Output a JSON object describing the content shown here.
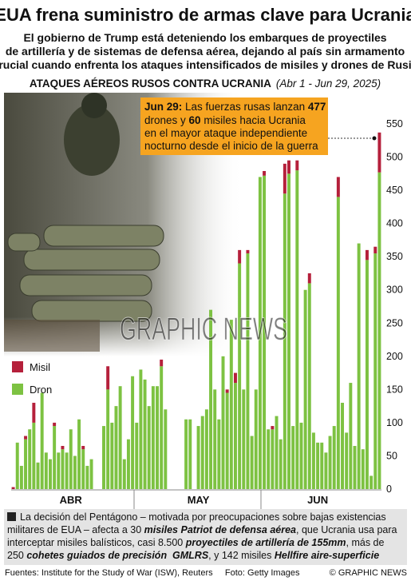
{
  "header": {
    "title": "EUA frena suministro de armas clave para Ucrania",
    "subtitle_lines": [
      "El gobierno de Trump está deteniendo los embarques de proyectiles",
      "de artillería y de sistemas de defensa aérea, dejando al país sin armamento",
      "crucial cuando enfrenta los ataques intensificados de misiles y drones de Rusia"
    ]
  },
  "chart_data": {
    "type": "stacked-bar",
    "title": "ATAQUES AÉREOS RUSOS CONTRA UCRANIA",
    "subtitle": "(Abr 1 - Jun 29, 2025)",
    "categories": [
      null,
      null,
      null,
      null,
      null,
      null,
      null,
      null,
      null,
      null,
      null,
      null,
      null,
      null,
      "ABR",
      null,
      null,
      null,
      null,
      null,
      null,
      null,
      null,
      null,
      null,
      null,
      null,
      null,
      null,
      null,
      null,
      null,
      null,
      null,
      null,
      null,
      null,
      null,
      null,
      null,
      null,
      null,
      null,
      null,
      null,
      "MAY",
      null,
      null,
      null,
      null,
      null,
      null,
      null,
      null,
      null,
      null,
      null,
      null,
      null,
      null,
      null,
      null,
      null,
      null,
      null,
      null,
      null,
      null,
      null,
      null,
      null,
      null,
      null,
      null,
      "JUN",
      null,
      null,
      null,
      null,
      null,
      null,
      null,
      null,
      null,
      null,
      null,
      null,
      null,
      null,
      null
    ],
    "series": [
      {
        "name": "Dron",
        "color": "#7dc242",
        "values": [
          0,
          70,
          35,
          75,
          90,
          100,
          40,
          145,
          55,
          45,
          95,
          55,
          60,
          55,
          90,
          50,
          105,
          60,
          35,
          45,
          0,
          0,
          95,
          150,
          100,
          125,
          155,
          45,
          75,
          170,
          100,
          180,
          165,
          125,
          155,
          155,
          185,
          120,
          0,
          0,
          0,
          0,
          105,
          105,
          0,
          95,
          110,
          120,
          270,
          150,
          105,
          200,
          145,
          255,
          160,
          340,
          150,
          355,
          80,
          150,
          470,
          472,
          90,
          90,
          110,
          75,
          445,
          475,
          95,
          480,
          100,
          300,
          310,
          85,
          70,
          70,
          55,
          80,
          95,
          440,
          130,
          85,
          160,
          65,
          370,
          60,
          345,
          20,
          355,
          477
        ]
      },
      {
        "name": "Misil",
        "color": "#b5203b",
        "values": [
          3,
          0,
          0,
          5,
          0,
          30,
          0,
          0,
          0,
          0,
          5,
          0,
          5,
          0,
          0,
          0,
          0,
          5,
          0,
          0,
          0,
          0,
          0,
          35,
          0,
          0,
          0,
          0,
          0,
          0,
          0,
          0,
          0,
          0,
          0,
          0,
          10,
          0,
          0,
          0,
          0,
          0,
          0,
          0,
          0,
          0,
          0,
          0,
          0,
          0,
          0,
          0,
          5,
          0,
          15,
          20,
          0,
          5,
          0,
          0,
          0,
          7,
          0,
          5,
          0,
          0,
          45,
          20,
          0,
          15,
          0,
          0,
          15,
          0,
          0,
          0,
          0,
          0,
          0,
          30,
          0,
          0,
          0,
          0,
          0,
          0,
          15,
          0,
          10,
          60
        ]
      }
    ],
    "ylim": [
      0,
      550
    ],
    "yticks": [
      0,
      50,
      100,
      150,
      200,
      250,
      300,
      350,
      400,
      450,
      500,
      550
    ],
    "annotation": {
      "lines": [
        [
          "Jun 29:",
          " Las fuerzas rusas lanzan ",
          "477"
        ],
        [
          "drones y ",
          "60",
          " misiles hacia Ucrania"
        ],
        [
          "en el mayor ataque independiente"
        ],
        [
          "nocturno desde el inicio de la guerra"
        ]
      ]
    },
    "watermark": "GRAPHIC NEWS"
  },
  "footer": {
    "lines": [
      [
        "La decisión del Pentágono – motivada por preocupaciones sobre bajas existencias"
      ],
      [
        "militares de EUA – afecta a 30 ",
        "misiles Patriot de defensa aérea",
        ", que Ucrania usa para"
      ],
      [
        "interceptar misiles balísticos, casi 8.500 ",
        "proyectiles de artillería de 155mm",
        ", más de"
      ],
      [
        "250 ",
        "cohetes guiados de precisión  GMLRS",
        ", y 142 misiles ",
        "Hellfire aire-superficie"
      ]
    ],
    "sources": "Fuentes: Institute for the Study of War (ISW), Reuters     Foto: Getty Images",
    "credit": "© GRAPHIC NEWS"
  }
}
